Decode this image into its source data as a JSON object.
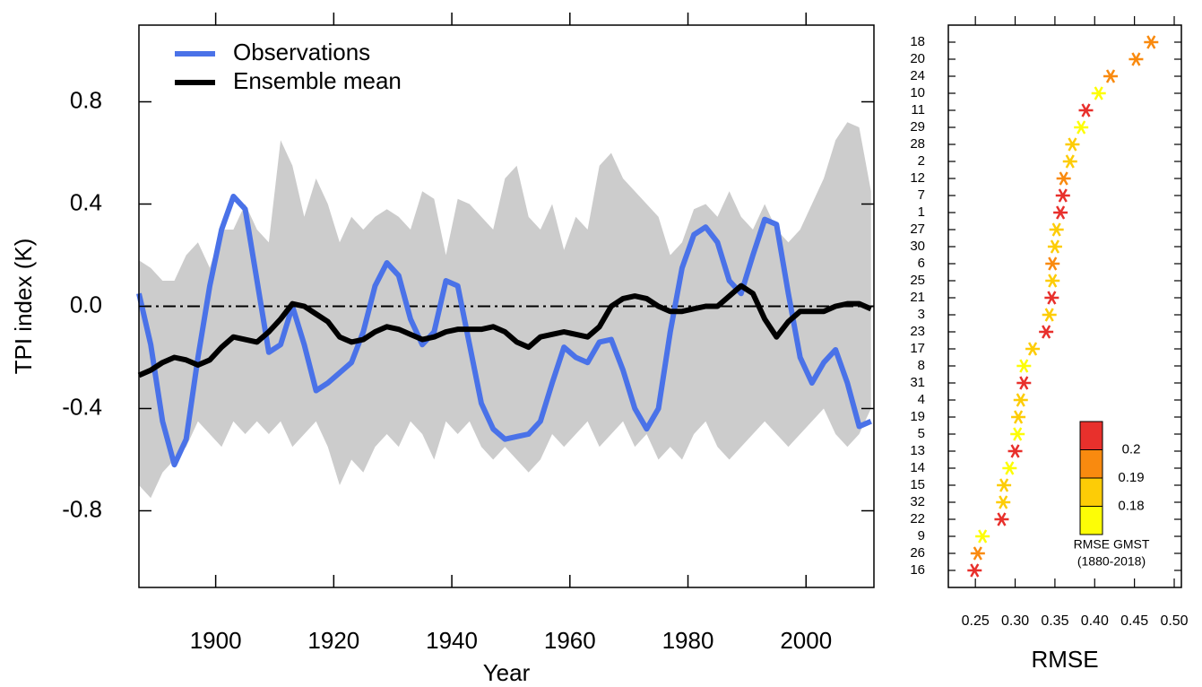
{
  "chart_data": [
    {
      "type": "line",
      "xlabel": "Year",
      "ylabel": "TPI index (K)",
      "xlim": [
        1887,
        2011.5
      ],
      "ylim": [
        -1.1,
        1.1
      ],
      "xticks": [
        1900,
        1920,
        1940,
        1960,
        1980,
        2000
      ],
      "yticks": [
        -0.8,
        -0.4,
        {
          "value": 0,
          "label": "0.0"
        },
        0.4,
        0.8
      ],
      "legend": "upper left",
      "hline": 0,
      "x": [
        1887,
        1889,
        1891,
        1893,
        1895,
        1897,
        1899,
        1901,
        1903,
        1905,
        1907,
        1909,
        1911,
        1913,
        1915,
        1917,
        1919,
        1921,
        1923,
        1925,
        1927,
        1929,
        1931,
        1933,
        1935,
        1937,
        1939,
        1941,
        1943,
        1945,
        1947,
        1949,
        1951,
        1953,
        1955,
        1957,
        1959,
        1961,
        1963,
        1965,
        1967,
        1969,
        1971,
        1973,
        1975,
        1977,
        1979,
        1981,
        1983,
        1985,
        1987,
        1989,
        1991,
        1993,
        1995,
        1997,
        1999,
        2001,
        2003,
        2005,
        2007,
        2009,
        2011
      ],
      "band": {
        "color": "#cccccc",
        "high": [
          0.18,
          0.15,
          0.1,
          0.1,
          0.2,
          0.25,
          0.15,
          0.3,
          0.3,
          0.4,
          0.3,
          0.25,
          0.65,
          0.55,
          0.35,
          0.5,
          0.4,
          0.25,
          0.35,
          0.3,
          0.35,
          0.38,
          0.35,
          0.3,
          0.45,
          0.42,
          0.2,
          0.42,
          0.4,
          0.35,
          0.3,
          0.5,
          0.55,
          0.35,
          0.3,
          0.4,
          0.22,
          0.35,
          0.3,
          0.55,
          0.6,
          0.5,
          0.45,
          0.4,
          0.35,
          0.2,
          0.25,
          0.38,
          0.4,
          0.35,
          0.45,
          0.35,
          0.3,
          0.4,
          0.3,
          0.25,
          0.3,
          0.4,
          0.5,
          0.65,
          0.72,
          0.7,
          0.45
        ],
        "low": [
          -0.7,
          -0.75,
          -0.65,
          -0.6,
          -0.55,
          -0.45,
          -0.5,
          -0.55,
          -0.45,
          -0.5,
          -0.45,
          -0.5,
          -0.45,
          -0.55,
          -0.5,
          -0.45,
          -0.55,
          -0.7,
          -0.6,
          -0.65,
          -0.55,
          -0.5,
          -0.55,
          -0.45,
          -0.5,
          -0.6,
          -0.45,
          -0.5,
          -0.45,
          -0.55,
          -0.6,
          -0.55,
          -0.6,
          -0.65,
          -0.6,
          -0.5,
          -0.55,
          -0.5,
          -0.45,
          -0.55,
          -0.5,
          -0.45,
          -0.55,
          -0.5,
          -0.6,
          -0.55,
          -0.6,
          -0.5,
          -0.45,
          -0.55,
          -0.6,
          -0.55,
          -0.5,
          -0.45,
          -0.5,
          -0.55,
          -0.5,
          -0.45,
          -0.4,
          -0.5,
          -0.55,
          -0.5,
          -0.4
        ]
      },
      "series": [
        {
          "name": "Observations",
          "color": "#4a72e8",
          "values": [
            0.05,
            -0.15,
            -0.45,
            -0.62,
            -0.52,
            -0.2,
            0.08,
            0.3,
            0.43,
            0.38,
            0.1,
            -0.18,
            -0.15,
            0.0,
            -0.15,
            -0.33,
            -0.3,
            -0.26,
            -0.22,
            -0.1,
            0.08,
            0.17,
            0.12,
            -0.05,
            -0.15,
            -0.1,
            0.1,
            0.08,
            -0.15,
            -0.38,
            -0.48,
            -0.52,
            -0.51,
            -0.5,
            -0.45,
            -0.3,
            -0.16,
            -0.2,
            -0.22,
            -0.14,
            -0.13,
            -0.25,
            -0.4,
            -0.48,
            -0.4,
            -0.1,
            0.15,
            0.28,
            0.31,
            0.25,
            0.1,
            0.05,
            0.2,
            0.34,
            0.32,
            0.05,
            -0.2,
            -0.3,
            -0.22,
            -0.17,
            -0.3,
            -0.47,
            -0.45
          ]
        },
        {
          "name": "Ensemble mean",
          "color": "#000000",
          "values": [
            -0.27,
            -0.25,
            -0.22,
            -0.2,
            -0.21,
            -0.23,
            -0.21,
            -0.16,
            -0.12,
            -0.13,
            -0.14,
            -0.1,
            -0.05,
            0.01,
            0.0,
            -0.03,
            -0.06,
            -0.12,
            -0.14,
            -0.13,
            -0.1,
            -0.08,
            -0.09,
            -0.11,
            -0.13,
            -0.12,
            -0.1,
            -0.09,
            -0.09,
            -0.09,
            -0.08,
            -0.1,
            -0.14,
            -0.16,
            -0.12,
            -0.11,
            -0.1,
            -0.11,
            -0.12,
            -0.08,
            0.0,
            0.03,
            0.04,
            0.03,
            0.0,
            -0.02,
            -0.02,
            -0.01,
            0.0,
            0.0,
            0.04,
            0.08,
            0.05,
            -0.05,
            -0.12,
            -0.06,
            -0.02,
            -0.02,
            -0.02,
            0.0,
            0.01,
            0.01,
            -0.01
          ]
        }
      ]
    },
    {
      "type": "scatter",
      "xlabel": "RMSE",
      "xlim": [
        0.216,
        0.509
      ],
      "xticks": [
        0.25,
        {
          "value": 0.3,
          "label": "0.30"
        },
        0.35,
        {
          "value": 0.4,
          "label": "0.40"
        },
        0.45,
        {
          "value": 0.5,
          "label": "0.50"
        }
      ],
      "categories": [
        "18",
        "20",
        "24",
        "10",
        "11",
        "29",
        "28",
        "2",
        "12",
        "7",
        "1",
        "27",
        "30",
        "6",
        "25",
        "21",
        "3",
        "23",
        "17",
        "8",
        "31",
        "4",
        "19",
        "5",
        "13",
        "14",
        "15",
        "32",
        "22",
        "9",
        "26",
        "16"
      ],
      "values": [
        0.471,
        0.452,
        0.42,
        0.405,
        0.389,
        0.383,
        0.372,
        0.369,
        0.361,
        0.36,
        0.357,
        0.352,
        0.35,
        0.347,
        0.347,
        0.346,
        0.343,
        0.339,
        0.322,
        0.311,
        0.311,
        0.307,
        0.304,
        0.303,
        0.3,
        0.293,
        0.286,
        0.285,
        0.283,
        0.259,
        0.253,
        0.249
      ],
      "colors": [
        "#f98a0f",
        "#f98a0f",
        "#f98a0f",
        "#fdfd06",
        "#e8302c",
        "#fdfd06",
        "#fdcc06",
        "#fdcc06",
        "#f98a0f",
        "#e8302c",
        "#e8302c",
        "#fdcc06",
        "#fdcc06",
        "#f98a0f",
        "#fdcc06",
        "#e8302c",
        "#fdcc06",
        "#e8302c",
        "#fdcc06",
        "#fdfd06",
        "#e8302c",
        "#fdcc06",
        "#fdcc06",
        "#fdfd06",
        "#e8302c",
        "#fdfd06",
        "#fdcc06",
        "#fdcc06",
        "#e8302c",
        "#fdfd06",
        "#f98a0f",
        "#e8302c"
      ],
      "colorbar": {
        "title": "RMSE GMST",
        "subtitle": "(1880-2018)",
        "colors": [
          "#e8302c",
          "#f98a0f",
          "#fdcc06",
          "#fdfd06"
        ],
        "levels": [
          0.2,
          0.19,
          0.18
        ]
      }
    }
  ]
}
